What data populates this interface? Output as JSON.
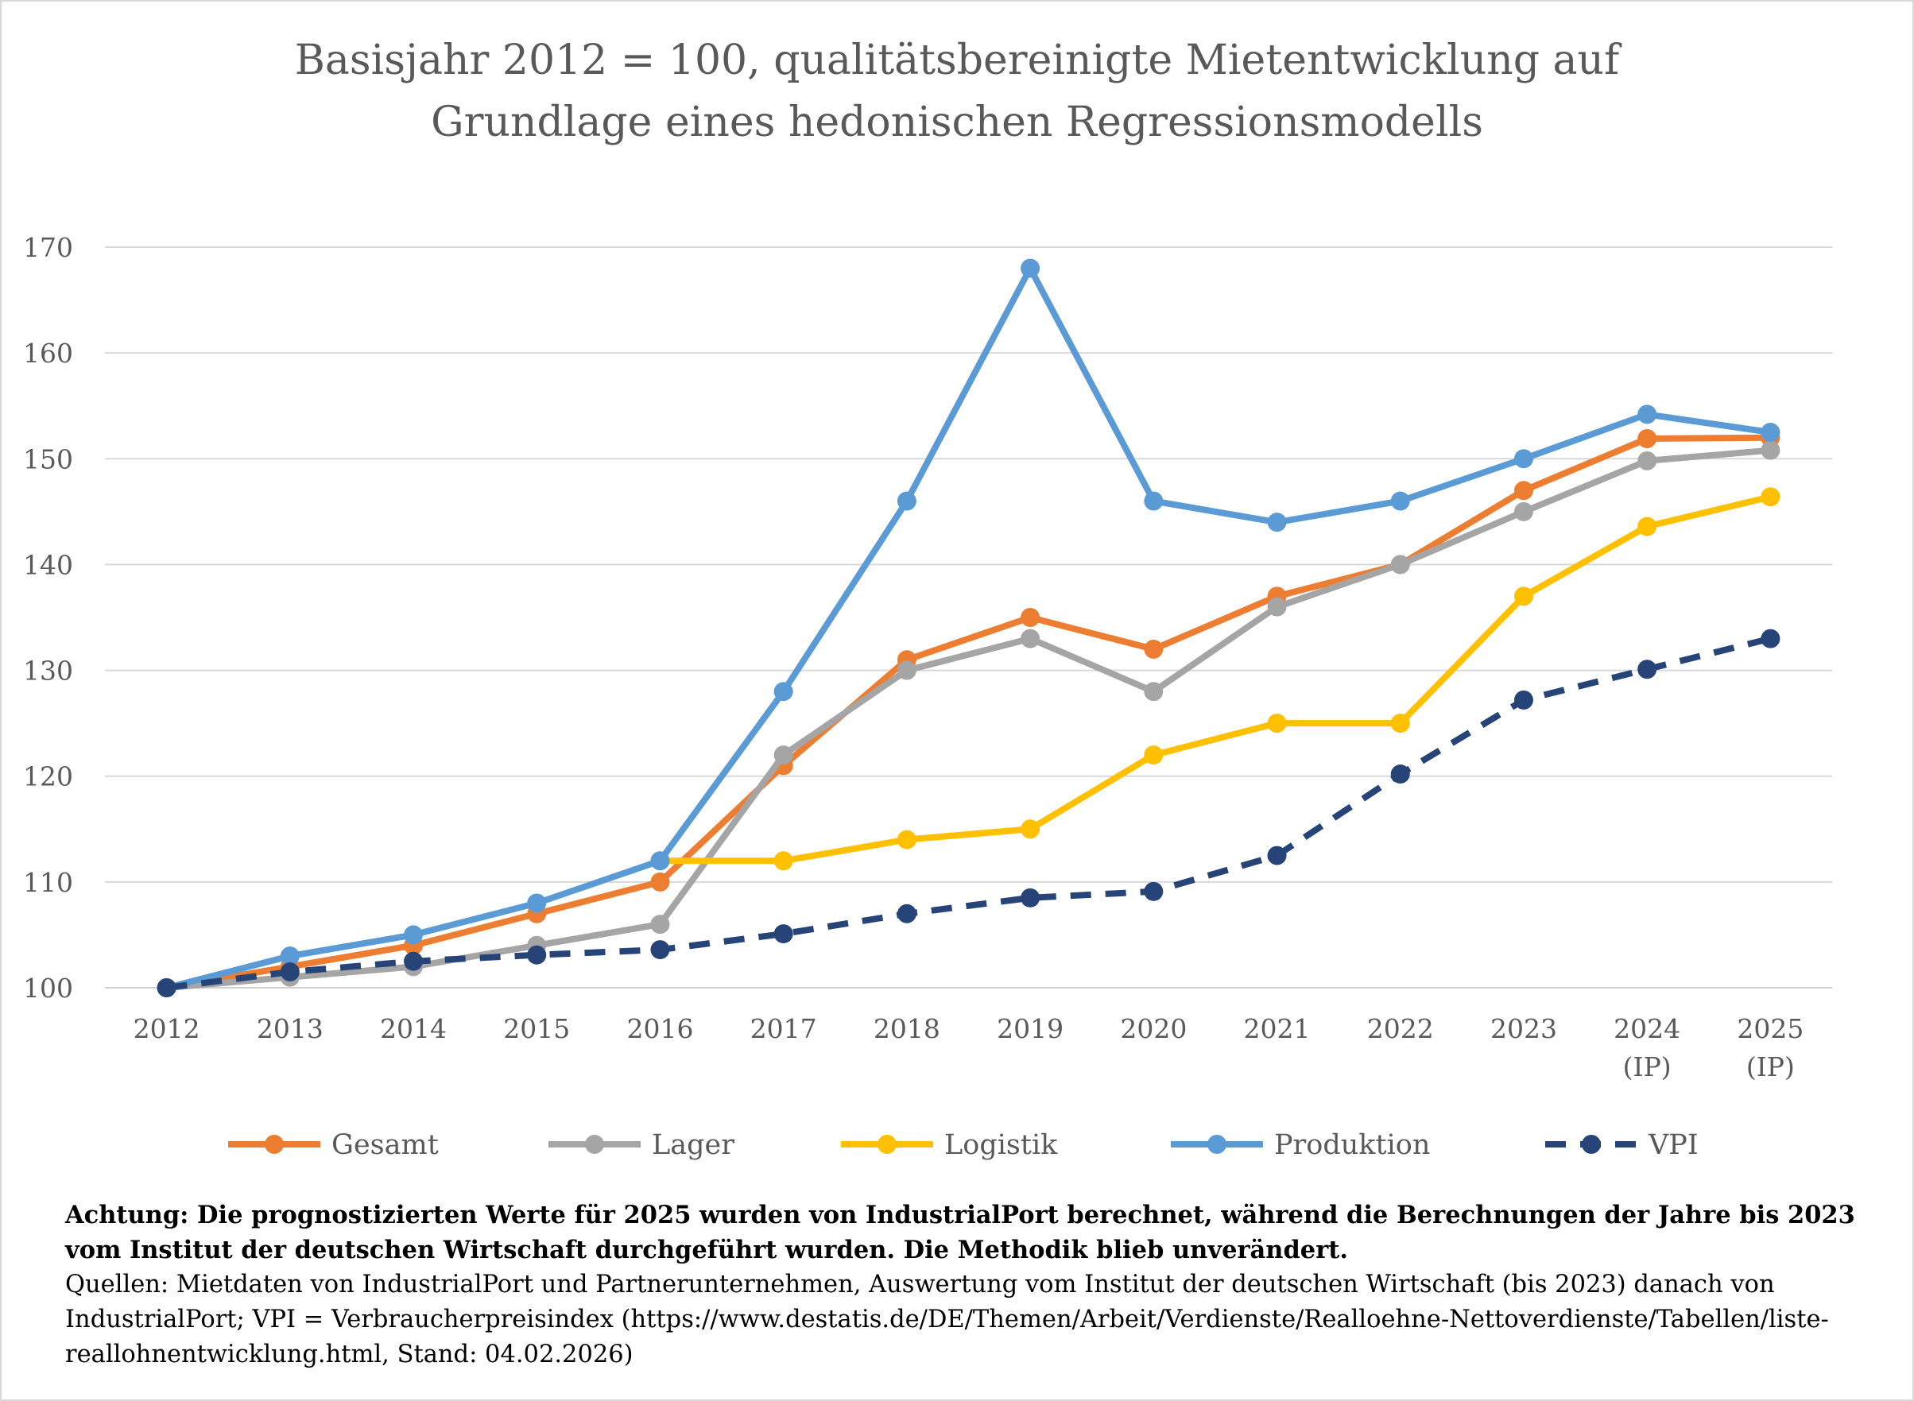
{
  "chart_data": {
    "type": "line",
    "title_lines": [
      "Basisjahr 2012 = 100, qualitätsbereinigte Mietentwicklung auf",
      "Grundlage eines hedonischen Regressionsmodells"
    ],
    "xlabel": "",
    "ylabel": "",
    "categories": [
      [
        "2012"
      ],
      [
        "2013"
      ],
      [
        "2014"
      ],
      [
        "2015"
      ],
      [
        "2016"
      ],
      [
        "2017"
      ],
      [
        "2018"
      ],
      [
        "2019"
      ],
      [
        "2020"
      ],
      [
        "2021"
      ],
      [
        "2022"
      ],
      [
        "2023"
      ],
      [
        "2024",
        "(IP)"
      ],
      [
        "2025",
        "(IP)"
      ]
    ],
    "yticks": [
      100,
      110,
      120,
      130,
      140,
      150,
      160,
      170
    ],
    "ylim": [
      100,
      170
    ],
    "grid": "horizontal",
    "legend_position": "bottom",
    "series": [
      {
        "name": "Gesamt",
        "color": "#ED7D31",
        "dashed": false,
        "values": [
          100,
          102,
          104,
          107,
          110,
          121,
          131,
          135,
          132,
          137,
          140,
          147,
          151.9,
          152
        ]
      },
      {
        "name": "Lager",
        "color": "#A5A5A5",
        "dashed": false,
        "values": [
          100,
          101,
          102,
          104,
          106,
          122,
          130,
          133,
          128,
          136,
          140,
          145,
          149.8,
          150.8
        ]
      },
      {
        "name": "Logistik",
        "color": "#FFC000",
        "dashed": false,
        "values": [
          null,
          null,
          null,
          null,
          112,
          112,
          114,
          115,
          122,
          125,
          125,
          137,
          143.6,
          146.4
        ]
      },
      {
        "name": "Produktion",
        "color": "#5B9BD5",
        "dashed": false,
        "values": [
          100,
          103,
          105,
          108,
          112,
          128,
          146,
          168,
          146,
          144,
          146,
          150,
          154.2,
          152.5
        ]
      },
      {
        "name": "VPI",
        "color": "#264478",
        "dashed": true,
        "values": [
          100,
          101.5,
          102.5,
          103.1,
          103.6,
          105.1,
          107,
          108.5,
          109.1,
          112.5,
          120.2,
          127.2,
          130.1,
          133
        ]
      }
    ]
  },
  "notes": {
    "warning": "Achtung: Die prognostizierten Werte für 2025 wurden von IndustrialPort berechnet, während die Berechnungen der Jahre bis 2023 vom Institut der deutschen Wirtschaft durchgeführt wurden. Die Methodik blieb unverändert.",
    "sources": "Quellen: Mietdaten von IndustrialPort und Partnerunternehmen, Auswertung vom Institut der deutschen Wirtschaft (bis 2023) danach von IndustrialPort; VPI = Verbraucherpreisindex (https://www.destatis.de/DE/Themen/Arbeit/Verdienste/Realloehne-Nettoverdienste/Tabellen/liste-reallohnentwicklung.html, Stand: 04.02.2026)"
  }
}
